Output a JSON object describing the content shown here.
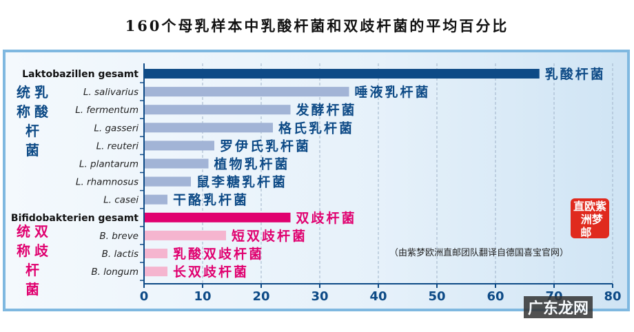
{
  "title": "160个母乳样本中乳酸杆菌和双歧杆菌的平均百分比",
  "chart_data": {
    "type": "bar",
    "orientation": "horizontal",
    "xlim": [
      0,
      80
    ],
    "xticks": [
      0,
      10,
      20,
      30,
      40,
      50,
      60,
      70,
      80
    ],
    "grid": "vertical dashed",
    "categories": [
      "Laktobazillen gesamt",
      "L. salivarius",
      "L. fermentum",
      "L. gasseri",
      "L. reuteri",
      "L. plantarum",
      "L. rhamnosus",
      "L. casei",
      "Bifidobakterien gesamt",
      "B. breve",
      "B. lactis",
      "B. longum"
    ],
    "category_labels_cn": [
      "乳酸杆菌",
      "唾液乳杆菌",
      "发酵杆菌",
      "格氏乳杆菌",
      "罗伊氏乳杆菌",
      "植物乳杆菌",
      "鼠李糖乳杆菌",
      "干酪乳杆菌",
      "双歧杆菌",
      "短双歧杆菌",
      "乳酸双歧杆菌",
      "长双歧杆菌"
    ],
    "values": [
      67.5,
      35,
      25,
      22,
      12,
      11,
      8,
      4,
      25,
      14,
      4,
      4
    ],
    "bar_colors": [
      "#0d4a86",
      "#a2b4d6",
      "#a2b4d6",
      "#a2b4d6",
      "#a2b4d6",
      "#a2b4d6",
      "#a2b4d6",
      "#a2b4d6",
      "#e0006f",
      "#f5b5cf",
      "#f5b5cf",
      "#f5b5cf"
    ],
    "label_colors": [
      "#0d4a86",
      "#0d4a86",
      "#0d4a86",
      "#0d4a86",
      "#0d4a86",
      "#0d4a86",
      "#0d4a86",
      "#0d4a86",
      "#e0006f",
      "#e0006f",
      "#e0006f",
      "#e0006f"
    ],
    "bold": [
      true,
      false,
      false,
      false,
      false,
      false,
      false,
      false,
      true,
      false,
      false,
      false
    ]
  },
  "group_labels": {
    "lacto": "统乳称酸杆菌",
    "bifido": "统双称歧杆菌"
  },
  "credit": "（由紫梦欧洲直邮团队翻译自德国喜宝官网）",
  "seal_text": "紫梦欧洲直邮",
  "watermark": "广东龙网"
}
